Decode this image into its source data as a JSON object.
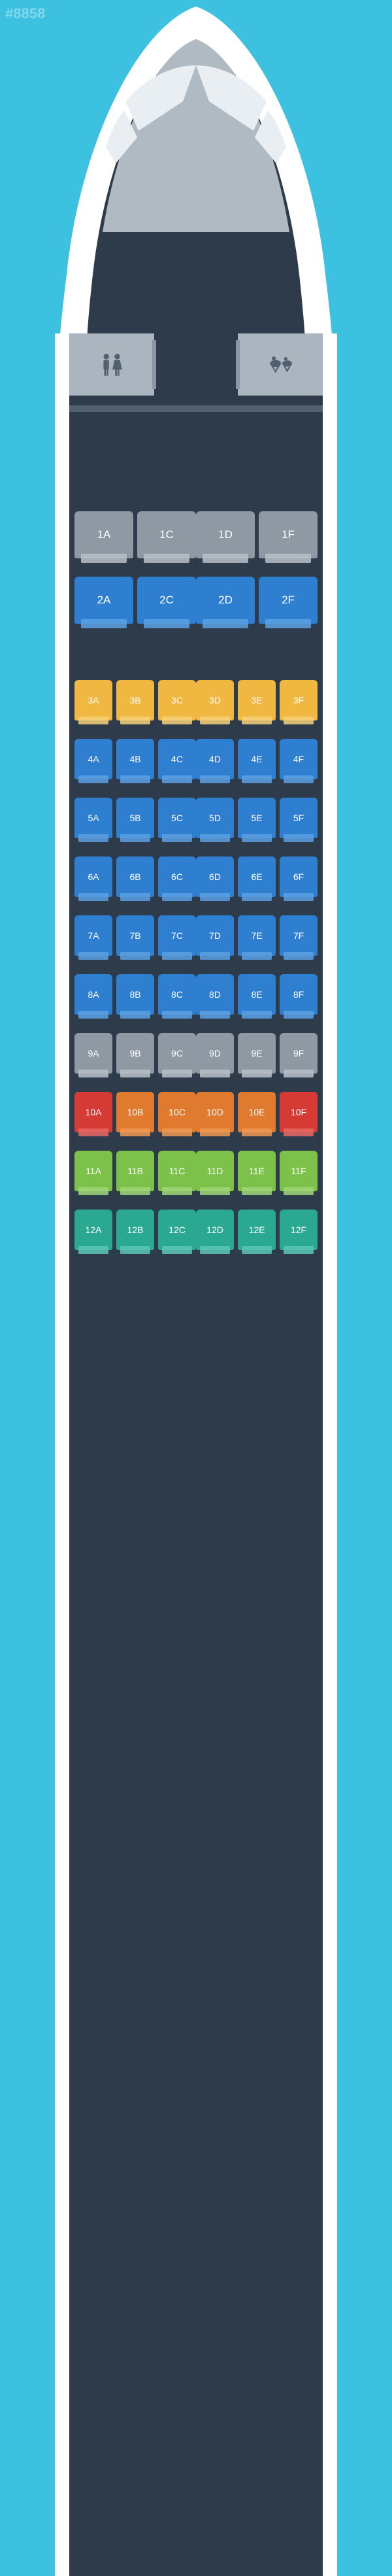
{
  "watermark_id": "#8858",
  "colors": {
    "page_bg": "#3dc1e0",
    "fuselage": "#ffffff",
    "cabin_floor": "#2e3b4a",
    "facility_bg": "#aab5bf",
    "bulkhead": "#51606f",
    "cockpit_window": "#e8eef2"
  },
  "seat_colors": {
    "grey": {
      "fill": "#8e99a3",
      "tray": "#b8c1c9"
    },
    "blue": {
      "fill": "#2f7fd1",
      "tray": "#5ba0e2"
    },
    "yellow": {
      "fill": "#f0b840",
      "tray": "#f5d07a"
    },
    "orange": {
      "fill": "#e07a2e",
      "tray": "#ef9a55"
    },
    "red": {
      "fill": "#d63a34",
      "tray": "#e86a64"
    },
    "green": {
      "fill": "#7cc24a",
      "tray": "#a0d878"
    },
    "teal": {
      "fill": "#2aa892",
      "tray": "#5cc7b4"
    }
  },
  "facilities": {
    "lavatory": "restroom-icon",
    "galley": "galley-icon"
  },
  "seat_dimensions": {
    "wide": {
      "w": 90,
      "h": 72,
      "font": 17
    },
    "std": {
      "w": 58,
      "h": 62,
      "font": 14
    }
  },
  "rows": [
    {
      "n": 1,
      "layout": "2-2",
      "size": "wide",
      "gap_after": false,
      "seats": [
        {
          "id": "1A",
          "c": "grey"
        },
        {
          "id": "1C",
          "c": "grey"
        },
        {
          "id": "1D",
          "c": "grey"
        },
        {
          "id": "1F",
          "c": "grey"
        }
      ]
    },
    {
      "n": 2,
      "layout": "2-2",
      "size": "wide",
      "gap_after": true,
      "seats": [
        {
          "id": "2A",
          "c": "blue"
        },
        {
          "id": "2C",
          "c": "blue"
        },
        {
          "id": "2D",
          "c": "blue"
        },
        {
          "id": "2F",
          "c": "blue"
        }
      ]
    },
    {
      "n": 3,
      "layout": "3-3",
      "size": "std",
      "gap_after": false,
      "seats": [
        {
          "id": "3A",
          "c": "yellow"
        },
        {
          "id": "3B",
          "c": "yellow"
        },
        {
          "id": "3C",
          "c": "yellow"
        },
        {
          "id": "3D",
          "c": "yellow"
        },
        {
          "id": "3E",
          "c": "yellow"
        },
        {
          "id": "3F",
          "c": "yellow"
        }
      ]
    },
    {
      "n": 4,
      "layout": "3-3",
      "size": "std",
      "gap_after": false,
      "seats": [
        {
          "id": "4A",
          "c": "blue"
        },
        {
          "id": "4B",
          "c": "blue"
        },
        {
          "id": "4C",
          "c": "blue"
        },
        {
          "id": "4D",
          "c": "blue"
        },
        {
          "id": "4E",
          "c": "blue"
        },
        {
          "id": "4F",
          "c": "blue"
        }
      ]
    },
    {
      "n": 5,
      "layout": "3-3",
      "size": "std",
      "gap_after": false,
      "seats": [
        {
          "id": "5A",
          "c": "blue"
        },
        {
          "id": "5B",
          "c": "blue"
        },
        {
          "id": "5C",
          "c": "blue"
        },
        {
          "id": "5D",
          "c": "blue"
        },
        {
          "id": "5E",
          "c": "blue"
        },
        {
          "id": "5F",
          "c": "blue"
        }
      ]
    },
    {
      "n": 6,
      "layout": "3-3",
      "size": "std",
      "gap_after": false,
      "seats": [
        {
          "id": "6A",
          "c": "blue"
        },
        {
          "id": "6B",
          "c": "blue"
        },
        {
          "id": "6C",
          "c": "blue"
        },
        {
          "id": "6D",
          "c": "blue"
        },
        {
          "id": "6E",
          "c": "blue"
        },
        {
          "id": "6F",
          "c": "blue"
        }
      ]
    },
    {
      "n": 7,
      "layout": "3-3",
      "size": "std",
      "gap_after": false,
      "seats": [
        {
          "id": "7A",
          "c": "blue"
        },
        {
          "id": "7B",
          "c": "blue"
        },
        {
          "id": "7C",
          "c": "blue"
        },
        {
          "id": "7D",
          "c": "blue"
        },
        {
          "id": "7E",
          "c": "blue"
        },
        {
          "id": "7F",
          "c": "blue"
        }
      ]
    },
    {
      "n": 8,
      "layout": "3-3",
      "size": "std",
      "gap_after": false,
      "seats": [
        {
          "id": "8A",
          "c": "blue"
        },
        {
          "id": "8B",
          "c": "blue"
        },
        {
          "id": "8C",
          "c": "blue"
        },
        {
          "id": "8D",
          "c": "blue"
        },
        {
          "id": "8E",
          "c": "blue"
        },
        {
          "id": "8F",
          "c": "blue"
        }
      ]
    },
    {
      "n": 9,
      "layout": "3-3",
      "size": "std",
      "gap_after": false,
      "seats": [
        {
          "id": "9A",
          "c": "grey"
        },
        {
          "id": "9B",
          "c": "grey"
        },
        {
          "id": "9C",
          "c": "grey"
        },
        {
          "id": "9D",
          "c": "grey"
        },
        {
          "id": "9E",
          "c": "grey"
        },
        {
          "id": "9F",
          "c": "grey"
        }
      ]
    },
    {
      "n": 10,
      "layout": "3-3",
      "size": "std",
      "gap_after": false,
      "seats": [
        {
          "id": "10A",
          "c": "red"
        },
        {
          "id": "10B",
          "c": "orange"
        },
        {
          "id": "10C",
          "c": "orange"
        },
        {
          "id": "10D",
          "c": "orange"
        },
        {
          "id": "10E",
          "c": "orange"
        },
        {
          "id": "10F",
          "c": "red"
        }
      ]
    },
    {
      "n": 11,
      "layout": "3-3",
      "size": "std",
      "gap_after": false,
      "seats": [
        {
          "id": "11A",
          "c": "green"
        },
        {
          "id": "11B",
          "c": "green"
        },
        {
          "id": "11C",
          "c": "green"
        },
        {
          "id": "11D",
          "c": "green"
        },
        {
          "id": "11E",
          "c": "green"
        },
        {
          "id": "11F",
          "c": "green"
        }
      ]
    },
    {
      "n": 12,
      "layout": "3-3",
      "size": "std",
      "gap_after": false,
      "seats": [
        {
          "id": "12A",
          "c": "teal"
        },
        {
          "id": "12B",
          "c": "teal"
        },
        {
          "id": "12C",
          "c": "teal"
        },
        {
          "id": "12D",
          "c": "teal"
        },
        {
          "id": "12E",
          "c": "teal"
        },
        {
          "id": "12F",
          "c": "teal"
        }
      ]
    }
  ]
}
